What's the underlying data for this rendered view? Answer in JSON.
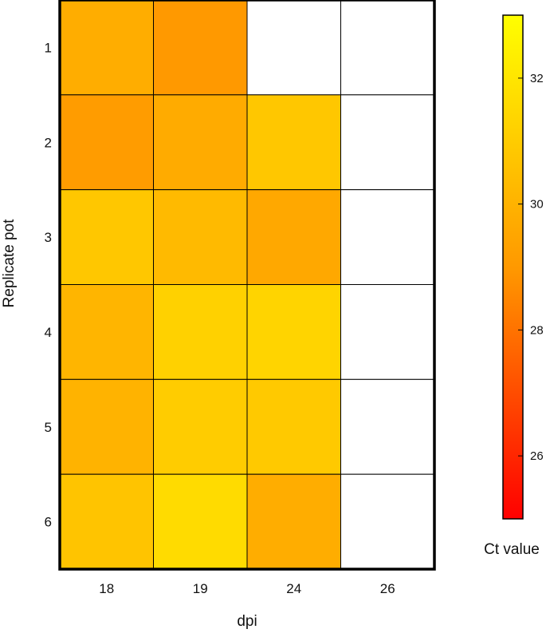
{
  "chart_data": {
    "type": "heatmap",
    "title": "",
    "xlabel": "dpi",
    "ylabel": "Replicate pot",
    "x_categories": [
      "18",
      "19",
      "24",
      "26"
    ],
    "y_categories": [
      "1",
      "2",
      "3",
      "4",
      "5",
      "6"
    ],
    "values": [
      [
        29.8,
        29.0,
        null,
        null
      ],
      [
        29.1,
        29.7,
        30.8,
        null
      ],
      [
        30.8,
        30.3,
        29.6,
        null
      ],
      [
        30.1,
        31.2,
        31.3,
        null
      ],
      [
        30.0,
        31.0,
        30.9,
        null
      ],
      [
        30.7,
        31.6,
        29.8,
        null
      ]
    ],
    "missing_color": "#ffffff",
    "colorbar": {
      "label": "Ct value",
      "range": [
        25.0,
        33.0
      ],
      "ticks": [
        26,
        28,
        30,
        32
      ],
      "colors": [
        "#ff0000",
        "#ff9900",
        "#ffff00"
      ]
    },
    "grid": true
  }
}
